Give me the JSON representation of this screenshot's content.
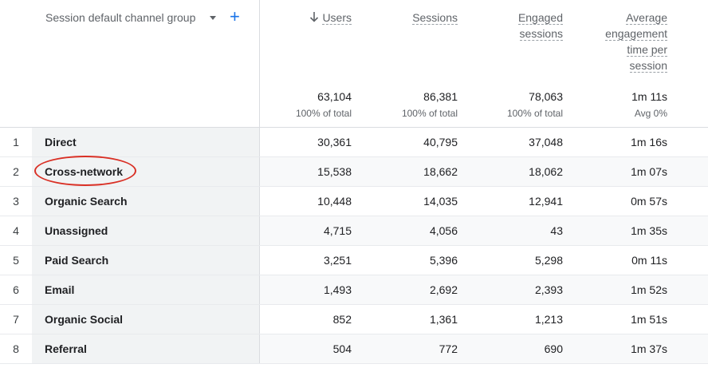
{
  "dimension_header": {
    "label": "Session default channel group",
    "dropdown_icon": "caret-down-icon",
    "add_icon_text": "+"
  },
  "metrics": [
    {
      "lines": [
        "Users"
      ],
      "sorted": true,
      "total": "63,104",
      "total_sub": "100% of total"
    },
    {
      "lines": [
        "Sessions"
      ],
      "sorted": false,
      "total": "86,381",
      "total_sub": "100% of total"
    },
    {
      "lines": [
        "Engaged",
        "sessions"
      ],
      "sorted": false,
      "total": "78,063",
      "total_sub": "100% of total"
    },
    {
      "lines": [
        "Average",
        "engagement",
        "time per",
        "session"
      ],
      "sorted": false,
      "total": "1m 11s",
      "total_sub": "Avg 0%"
    }
  ],
  "rows": [
    {
      "index": "1",
      "channel": "Direct",
      "users": "30,361",
      "sessions": "40,795",
      "engaged": "37,048",
      "avg_time": "1m 16s"
    },
    {
      "index": "2",
      "channel": "Cross-network",
      "users": "15,538",
      "sessions": "18,662",
      "engaged": "18,062",
      "avg_time": "1m 07s"
    },
    {
      "index": "3",
      "channel": "Organic Search",
      "users": "10,448",
      "sessions": "14,035",
      "engaged": "12,941",
      "avg_time": "0m 57s"
    },
    {
      "index": "4",
      "channel": "Unassigned",
      "users": "4,715",
      "sessions": "4,056",
      "engaged": "43",
      "avg_time": "1m 35s"
    },
    {
      "index": "5",
      "channel": "Paid Search",
      "users": "3,251",
      "sessions": "5,396",
      "engaged": "5,298",
      "avg_time": "0m 11s"
    },
    {
      "index": "6",
      "channel": "Email",
      "users": "1,493",
      "sessions": "2,692",
      "engaged": "2,393",
      "avg_time": "1m 52s"
    },
    {
      "index": "7",
      "channel": "Organic Social",
      "users": "852",
      "sessions": "1,361",
      "engaged": "1,213",
      "avg_time": "1m 51s"
    },
    {
      "index": "8",
      "channel": "Referral",
      "users": "504",
      "sessions": "772",
      "engaged": "690",
      "avg_time": "1m 37s"
    }
  ],
  "highlighted_row": "Cross-network",
  "colors": {
    "accent": "#1a73e8",
    "annotation": "#d93025",
    "dimension_bg": "#f1f3f4"
  }
}
